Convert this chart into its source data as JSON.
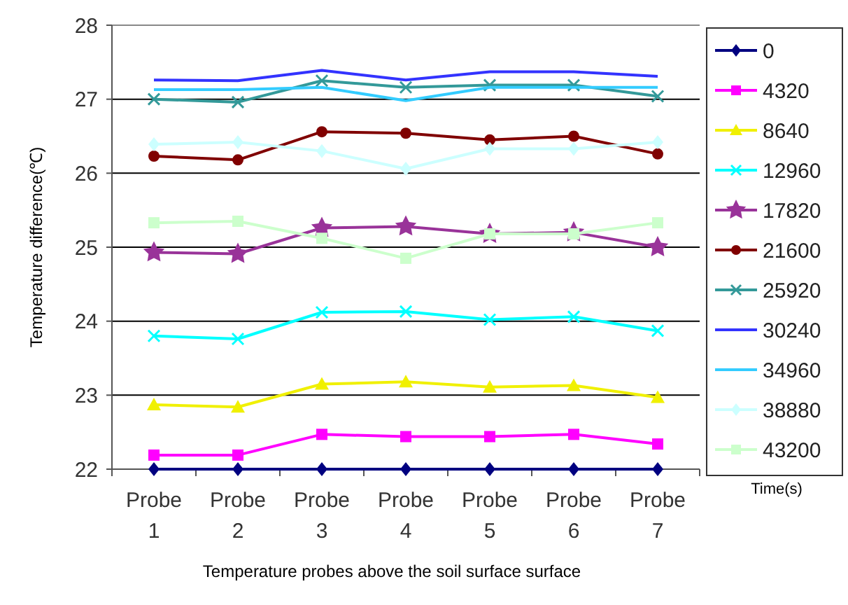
{
  "chart_data": {
    "type": "line",
    "xlabel": "Temperature probes above the soil surface surface",
    "ylabel": "Temperature difference(℃)",
    "legend_title": "Time(s)",
    "categories": [
      "Probe 1",
      "Probe 2",
      "Probe 3",
      "Probe 4",
      "Probe 5",
      "Probe 6",
      "Probe 7"
    ],
    "ylim": [
      22,
      28
    ],
    "yticks": [
      22,
      23,
      24,
      25,
      26,
      27,
      28
    ],
    "grid": "y",
    "legend": "right",
    "line_style": "solid",
    "series": [
      {
        "name": "0",
        "color": "#000080",
        "marker": "diamond",
        "values": [
          22,
          22,
          22,
          22,
          22,
          22,
          22
        ]
      },
      {
        "name": "4320",
        "color": "#ff00ff",
        "marker": "square",
        "values": [
          22.19,
          22.19,
          22.47,
          22.44,
          22.44,
          22.47,
          22.34
        ]
      },
      {
        "name": "8640",
        "color": "#f0f000",
        "marker": "triangle",
        "values": [
          22.87,
          22.84,
          23.15,
          23.18,
          23.11,
          23.13,
          22.97
        ]
      },
      {
        "name": "12960",
        "color": "#00ffff",
        "marker": "cross",
        "values": [
          23.8,
          23.76,
          24.12,
          24.13,
          24.02,
          24.06,
          23.87
        ]
      },
      {
        "name": "17820",
        "color": "#993399",
        "marker": "star",
        "values": [
          24.93,
          24.91,
          25.26,
          25.28,
          25.18,
          25.2,
          25.0
        ]
      },
      {
        "name": "21600",
        "color": "#800000",
        "marker": "circle",
        "values": [
          26.23,
          26.18,
          26.56,
          26.54,
          26.45,
          26.5,
          26.26
        ]
      },
      {
        "name": "25920",
        "color": "#339999",
        "marker": "cross",
        "values": [
          27.0,
          26.96,
          27.25,
          27.16,
          27.19,
          27.19,
          27.04
        ]
      },
      {
        "name": "30240",
        "color": "#3333ff",
        "marker": "none",
        "values": [
          27.26,
          27.25,
          27.39,
          27.26,
          27.37,
          27.37,
          27.31
        ]
      },
      {
        "name": "34960",
        "color": "#33ccff",
        "marker": "none",
        "values": [
          27.13,
          27.13,
          27.16,
          26.98,
          27.16,
          27.16,
          27.16
        ]
      },
      {
        "name": "38880",
        "color": "#ccffff",
        "marker": "diamond",
        "values": [
          26.39,
          26.42,
          26.3,
          26.06,
          26.33,
          26.33,
          26.42
        ]
      },
      {
        "name": "43200",
        "color": "#ccffcc",
        "marker": "square",
        "values": [
          25.33,
          25.35,
          25.12,
          24.85,
          25.18,
          25.18,
          25.33
        ]
      }
    ]
  }
}
